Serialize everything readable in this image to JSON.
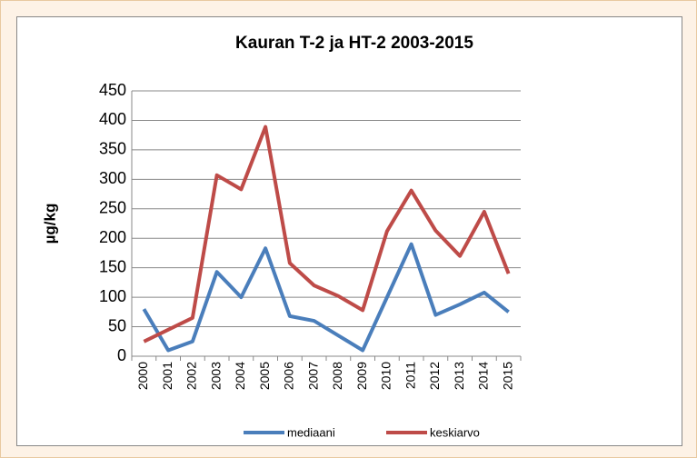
{
  "chart_data": {
    "type": "line",
    "title": "Kauran T-2 ja HT-2  2003-2015",
    "y_label": "µg/kg",
    "categories": [
      "2000",
      "2001",
      "2002",
      "2003",
      "2004",
      "2005",
      "2006",
      "2007",
      "2008",
      "2009",
      "2010",
      "2011",
      "2012",
      "2013",
      "2014",
      "2015"
    ],
    "series": [
      {
        "name": "mediaani",
        "color": "#4a7ebb",
        "values": [
          80,
          10,
          25,
          143,
          100,
          183,
          68,
          60,
          35,
          10,
          100,
          190,
          70,
          88,
          108,
          75
        ]
      },
      {
        "name": "keskiarvo",
        "color": "#be4b48",
        "values": [
          25,
          45,
          65,
          307,
          283,
          389,
          158,
          120,
          102,
          78,
          212,
          281,
          213,
          170,
          245,
          140
        ]
      }
    ],
    "ylim": [
      0,
      450
    ],
    "yticks": [
      0,
      50,
      100,
      150,
      200,
      250,
      300,
      350,
      400,
      450
    ],
    "grid": true,
    "legend": "bottom"
  }
}
